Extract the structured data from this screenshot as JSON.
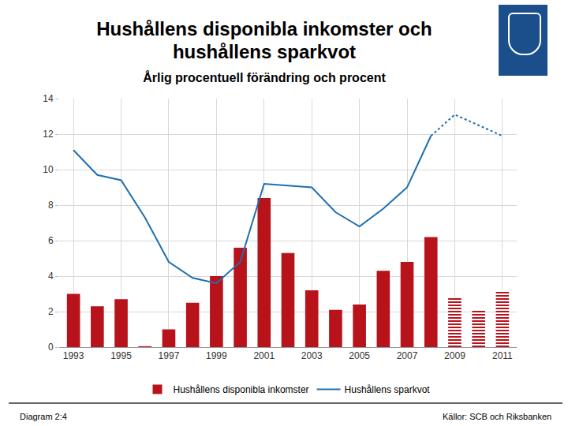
{
  "chart_data": {
    "type": "bar",
    "title": "Hushållens disponibla inkomster och hushållens sparkvot",
    "subtitle": "Årlig procentuell förändring och procent",
    "x": [
      1993,
      1994,
      1995,
      1996,
      1997,
      1998,
      1999,
      2000,
      2001,
      2002,
      2003,
      2004,
      2005,
      2006,
      2007,
      2008,
      2009,
      2010,
      2011
    ],
    "xlim": [
      1992.4,
      2011.6
    ],
    "xticks": [
      1993,
      1995,
      1997,
      1999,
      2001,
      2003,
      2005,
      2007,
      2009,
      2011
    ],
    "ylim": [
      0,
      14
    ],
    "yticks": [
      0,
      2,
      4,
      6,
      8,
      10,
      12,
      14
    ],
    "grid": true,
    "legend": "bottom",
    "series": [
      {
        "name": "Hushållens disponibla inkomster",
        "type": "bar",
        "color": "#b8121b",
        "values": [
          3.0,
          2.3,
          2.7,
          0.05,
          1.0,
          2.5,
          4.0,
          5.6,
          8.4,
          5.3,
          3.2,
          2.1,
          2.4,
          4.3,
          4.8,
          6.2,
          null,
          null,
          null
        ]
      },
      {
        "name": "Hushållens disponibla inkomster",
        "type": "bar",
        "color": "#b8121b",
        "marker": "striped",
        "values": [
          null,
          null,
          null,
          null,
          null,
          null,
          null,
          null,
          null,
          null,
          null,
          null,
          null,
          null,
          null,
          null,
          2.8,
          2.1,
          3.2
        ]
      },
      {
        "name": "Hushållens sparkvot",
        "type": "line",
        "color": "#1f6fb0",
        "line_style": "solid",
        "values": [
          11.1,
          9.7,
          9.4,
          7.3,
          4.8,
          3.9,
          3.6,
          4.8,
          9.2,
          9.1,
          9.0,
          7.6,
          6.8,
          7.8,
          9.0,
          11.9,
          null,
          null,
          null
        ]
      },
      {
        "name": "Hushållens sparkvot",
        "type": "line",
        "color": "#1f6fb0",
        "line_style": "dashed",
        "values": [
          null,
          null,
          null,
          null,
          null,
          null,
          null,
          null,
          null,
          null,
          null,
          null,
          null,
          null,
          null,
          11.9,
          13.1,
          12.5,
          11.9
        ]
      }
    ],
    "annotations": [
      "Diagram 2:4",
      "Källor: SCB och Riksbanken"
    ]
  }
}
